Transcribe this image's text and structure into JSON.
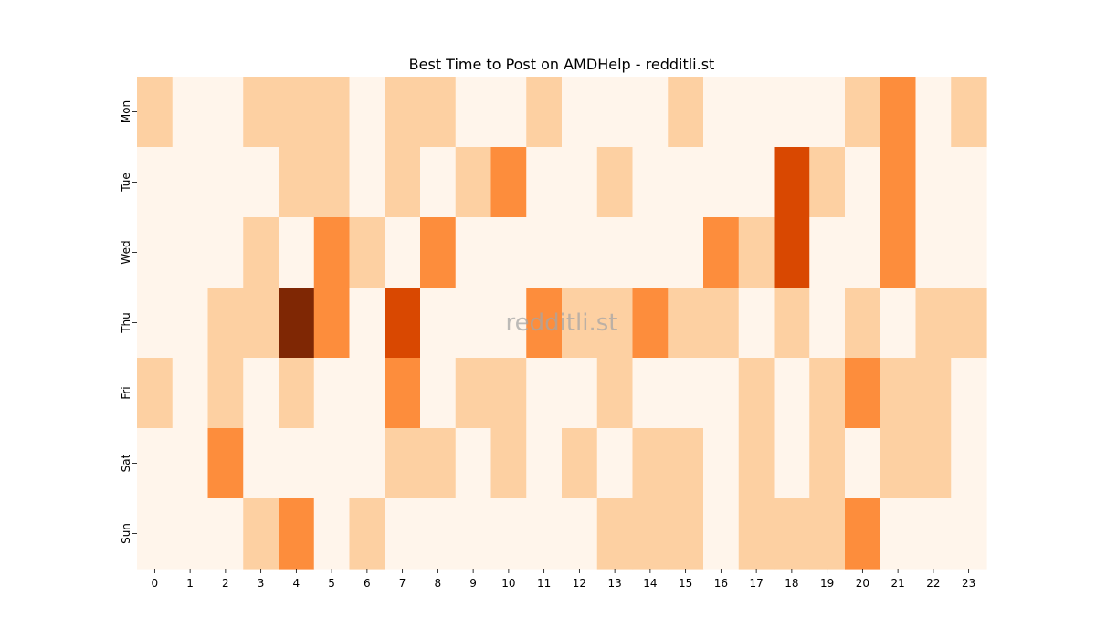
{
  "chart_data": {
    "type": "heatmap",
    "title": "Best Time to Post on AMDHelp - redditli.st",
    "watermark": "redditli.st",
    "xlabel": "",
    "ylabel": "",
    "x": [
      "0",
      "1",
      "2",
      "3",
      "4",
      "5",
      "6",
      "7",
      "8",
      "9",
      "10",
      "11",
      "12",
      "13",
      "14",
      "15",
      "16",
      "17",
      "18",
      "19",
      "20",
      "21",
      "22",
      "23"
    ],
    "y": [
      "Mon",
      "Tue",
      "Wed",
      "Thu",
      "Fri",
      "Sat",
      "Sun"
    ],
    "values": [
      [
        1,
        0,
        0,
        1,
        1,
        1,
        0,
        1,
        1,
        0,
        0,
        1,
        0,
        0,
        0,
        1,
        0,
        0,
        0,
        0,
        1,
        2,
        0,
        1
      ],
      [
        0,
        0,
        0,
        0,
        1,
        1,
        0,
        1,
        0,
        1,
        2,
        0,
        0,
        1,
        0,
        0,
        0,
        0,
        3,
        1,
        0,
        2,
        0,
        0
      ],
      [
        0,
        0,
        0,
        1,
        0,
        2,
        1,
        0,
        2,
        0,
        0,
        0,
        0,
        0,
        0,
        0,
        2,
        1,
        3,
        0,
        0,
        2,
        0,
        0
      ],
      [
        0,
        0,
        1,
        1,
        4,
        2,
        0,
        3,
        0,
        0,
        0,
        2,
        1,
        1,
        2,
        1,
        1,
        0,
        1,
        0,
        1,
        0,
        1,
        1
      ],
      [
        1,
        0,
        1,
        0,
        1,
        0,
        0,
        2,
        0,
        1,
        1,
        0,
        0,
        1,
        0,
        0,
        0,
        1,
        0,
        1,
        2,
        1,
        1,
        0
      ],
      [
        0,
        0,
        2,
        0,
        0,
        0,
        0,
        1,
        1,
        0,
        1,
        0,
        1,
        0,
        1,
        1,
        0,
        1,
        0,
        1,
        0,
        1,
        1,
        0
      ],
      [
        0,
        0,
        0,
        1,
        2,
        0,
        1,
        0,
        0,
        0,
        0,
        0,
        0,
        1,
        1,
        1,
        0,
        1,
        1,
        1,
        2,
        0,
        0,
        0
      ]
    ],
    "value_range": [
      0,
      4
    ],
    "colormap": [
      "#fff5eb",
      "#fdd0a2",
      "#fd8d3c",
      "#d94801",
      "#7f2704"
    ],
    "colorbar": false,
    "grid": false
  }
}
